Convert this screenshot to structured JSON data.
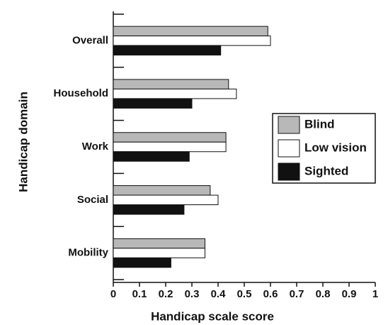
{
  "chart_data": {
    "type": "bar",
    "orientation": "horizontal",
    "xlabel": "Handicap scale score",
    "ylabel": "Handicap domain",
    "categories": [
      "Overall",
      "Household",
      "Work",
      "Social",
      "Mobility"
    ],
    "series": [
      {
        "name": "Blind",
        "color": "#b8b8b8",
        "values": [
          0.59,
          0.44,
          0.43,
          0.37,
          0.35
        ]
      },
      {
        "name": "Low vision",
        "color": "#ffffff",
        "values": [
          0.6,
          0.47,
          0.43,
          0.4,
          0.35
        ]
      },
      {
        "name": "Sighted",
        "color": "#111111",
        "values": [
          0.41,
          0.3,
          0.29,
          0.27,
          0.22
        ]
      }
    ],
    "xlim": [
      0,
      1
    ],
    "xticks": [
      0,
      0.1,
      0.2,
      0.3,
      0.4,
      0.5,
      0.6,
      0.7,
      0.8,
      0.9,
      1
    ],
    "legend": "right"
  }
}
